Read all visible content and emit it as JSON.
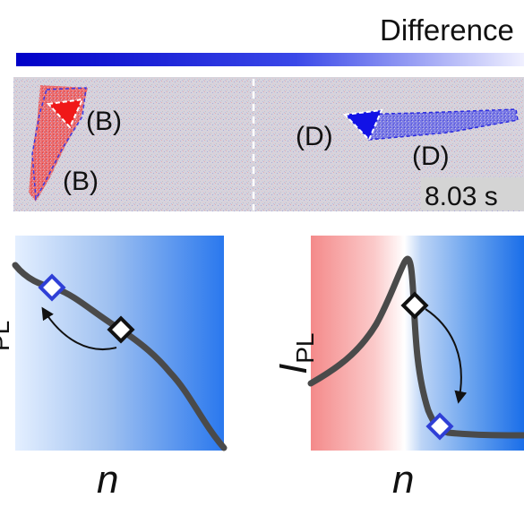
{
  "header": {
    "title": "Difference"
  },
  "microscopy": {
    "time_label": "8.03 s",
    "left_labels": [
      "(B)",
      "(B)"
    ],
    "right_labels": [
      "(D)",
      "(D)"
    ]
  },
  "plots": {
    "x_label": "n",
    "y_label_main": "I",
    "y_label_sub": "PL",
    "left_y_fragment": "PL"
  },
  "colors": {
    "accent_blue": "#1f4fff",
    "curve": "#4a4a4a",
    "red_fill": "#f26b6b",
    "marker_blue": "#2f3fd6"
  }
}
